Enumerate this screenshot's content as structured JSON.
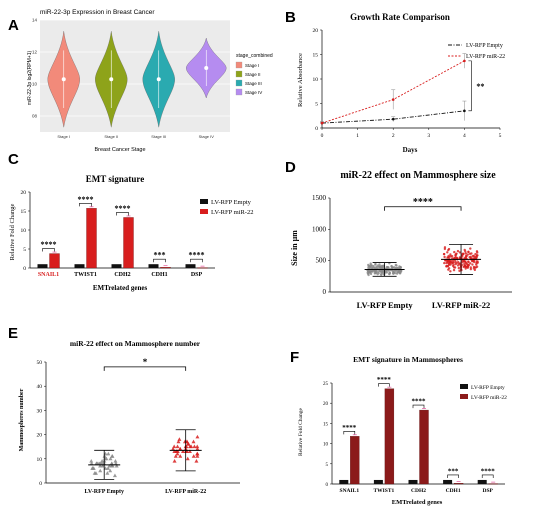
{
  "panel_letters": {
    "a": "A",
    "b": "B",
    "c": "C",
    "d": "D",
    "e": "E",
    "f": "F"
  },
  "colors": {
    "empty": "#111111",
    "mir22": "#8b1a1a",
    "mir22_bright": "#d81e1e",
    "stage1": "#f28a7a",
    "stage2": "#8ea31a",
    "stage3": "#2aaab0",
    "stage4": "#b58cf0",
    "scatter_empty": "#888888",
    "scatter_mir22": "#d81e1e"
  },
  "chart_data": [
    {
      "id": "A",
      "type": "violin",
      "title": "miR-22-3p Expression in Breast Cancer",
      "xlabel": "Breast Cancer Stage",
      "ylabel": "miR-22-3p log2(RPM+1)",
      "categories": [
        "Stage I",
        "Stage II",
        "Stage III",
        "Stage IV"
      ],
      "values": [
        10.3,
        10.3,
        10.3,
        11.0
      ],
      "ylim": [
        7,
        14
      ],
      "yticks": [
        "14",
        "12",
        "10",
        "08"
      ],
      "legend_title": "stage_combined",
      "legend": [
        "Stage I",
        "Stage II",
        "Stage III",
        "Stage IV"
      ],
      "legend_position": "right"
    },
    {
      "id": "B",
      "type": "line",
      "title": "Growth Rate Comparison",
      "xlabel": "Days",
      "ylabel": "Relative Absorbance",
      "x": [
        0,
        2,
        4
      ],
      "xticks": [
        "0",
        "1",
        "2",
        "3",
        "4",
        "5"
      ],
      "yticks": [
        "0",
        "5",
        "10",
        "15",
        "20"
      ],
      "ylim": [
        0,
        20
      ],
      "series": [
        {
          "name": "LV-RFP Empty",
          "values": [
            1,
            1.8,
            3.5
          ],
          "errors": [
            0.2,
            0.5,
            2.0
          ]
        },
        {
          "name": "LV-RFP miR-22",
          "values": [
            1,
            5.8,
            13.7
          ],
          "errors": [
            0.3,
            2.0,
            1.5
          ]
        }
      ],
      "annotation": "**",
      "legend_position": "top-right"
    },
    {
      "id": "C",
      "type": "bar",
      "title": "EMT signature",
      "xlabel": "EMTrelated genes",
      "ylabel": "Relative Fold Change",
      "categories": [
        "SNAIL1",
        "TWIST1",
        "CDH2",
        "CDH1",
        "DSP"
      ],
      "yticks": [
        "0",
        "5",
        "10",
        "15",
        "20"
      ],
      "ylim": [
        0,
        20
      ],
      "series": [
        {
          "name": "LV-RFP Empty",
          "values": [
            1,
            1,
            1,
            1,
            1
          ]
        },
        {
          "name": "LV-RFP miR-22",
          "values": [
            3.8,
            15.7,
            13.3,
            0.2,
            0.1
          ]
        }
      ],
      "significance": [
        "****",
        "****",
        "****",
        "***",
        "****"
      ],
      "legend_position": "top-right"
    },
    {
      "id": "D",
      "type": "scatter",
      "title": "miR-22 effect on Mammosphere size",
      "ylabel": "Size in μm",
      "categories": [
        "LV-RFP Empty",
        "LV-RFP miR-22"
      ],
      "yticks": [
        "0",
        "500",
        "1000",
        "1500"
      ],
      "ylim": [
        0,
        1500
      ],
      "series": [
        {
          "name": "LV-RFP Empty",
          "mean": 360,
          "sd": 110
        },
        {
          "name": "LV-RFP miR-22",
          "mean": 520,
          "sd": 240
        }
      ],
      "annotation": "****"
    },
    {
      "id": "E",
      "type": "scatter",
      "title": "miR-22 effect on Mammosphere number",
      "ylabel": "Mammospheres number",
      "categories": [
        "LV-RFP Empty",
        "LV-RFP miR-22"
      ],
      "yticks": [
        "0",
        "10",
        "20",
        "30",
        "40",
        "50"
      ],
      "ylim": [
        0,
        50
      ],
      "series": [
        {
          "name": "LV-RFP Empty",
          "mean": 7.5,
          "sd": 6
        },
        {
          "name": "LV-RFP miR-22",
          "mean": 13.5,
          "sd": 8.5
        }
      ],
      "annotation": "*"
    },
    {
      "id": "F",
      "type": "bar",
      "title": "EMT signature in Mammospheres",
      "xlabel": "EMTrelated genes",
      "ylabel": "Relative Fold Change",
      "categories": [
        "SNAIL1",
        "TWIST1",
        "CDH2",
        "CDH1",
        "DSP"
      ],
      "yticks": [
        "0",
        "5",
        "10",
        "15",
        "20",
        "25"
      ],
      "ylim": [
        0,
        25
      ],
      "series": [
        {
          "name": "LV-RFP Empty",
          "values": [
            1,
            1,
            1,
            1,
            1
          ]
        },
        {
          "name": "LV-RFP miR-22",
          "values": [
            11.8,
            23.6,
            18.3,
            0.2,
            0.1
          ]
        }
      ],
      "significance": [
        "****",
        "****",
        "****",
        "***",
        "****"
      ],
      "legend_position": "top-right"
    }
  ]
}
